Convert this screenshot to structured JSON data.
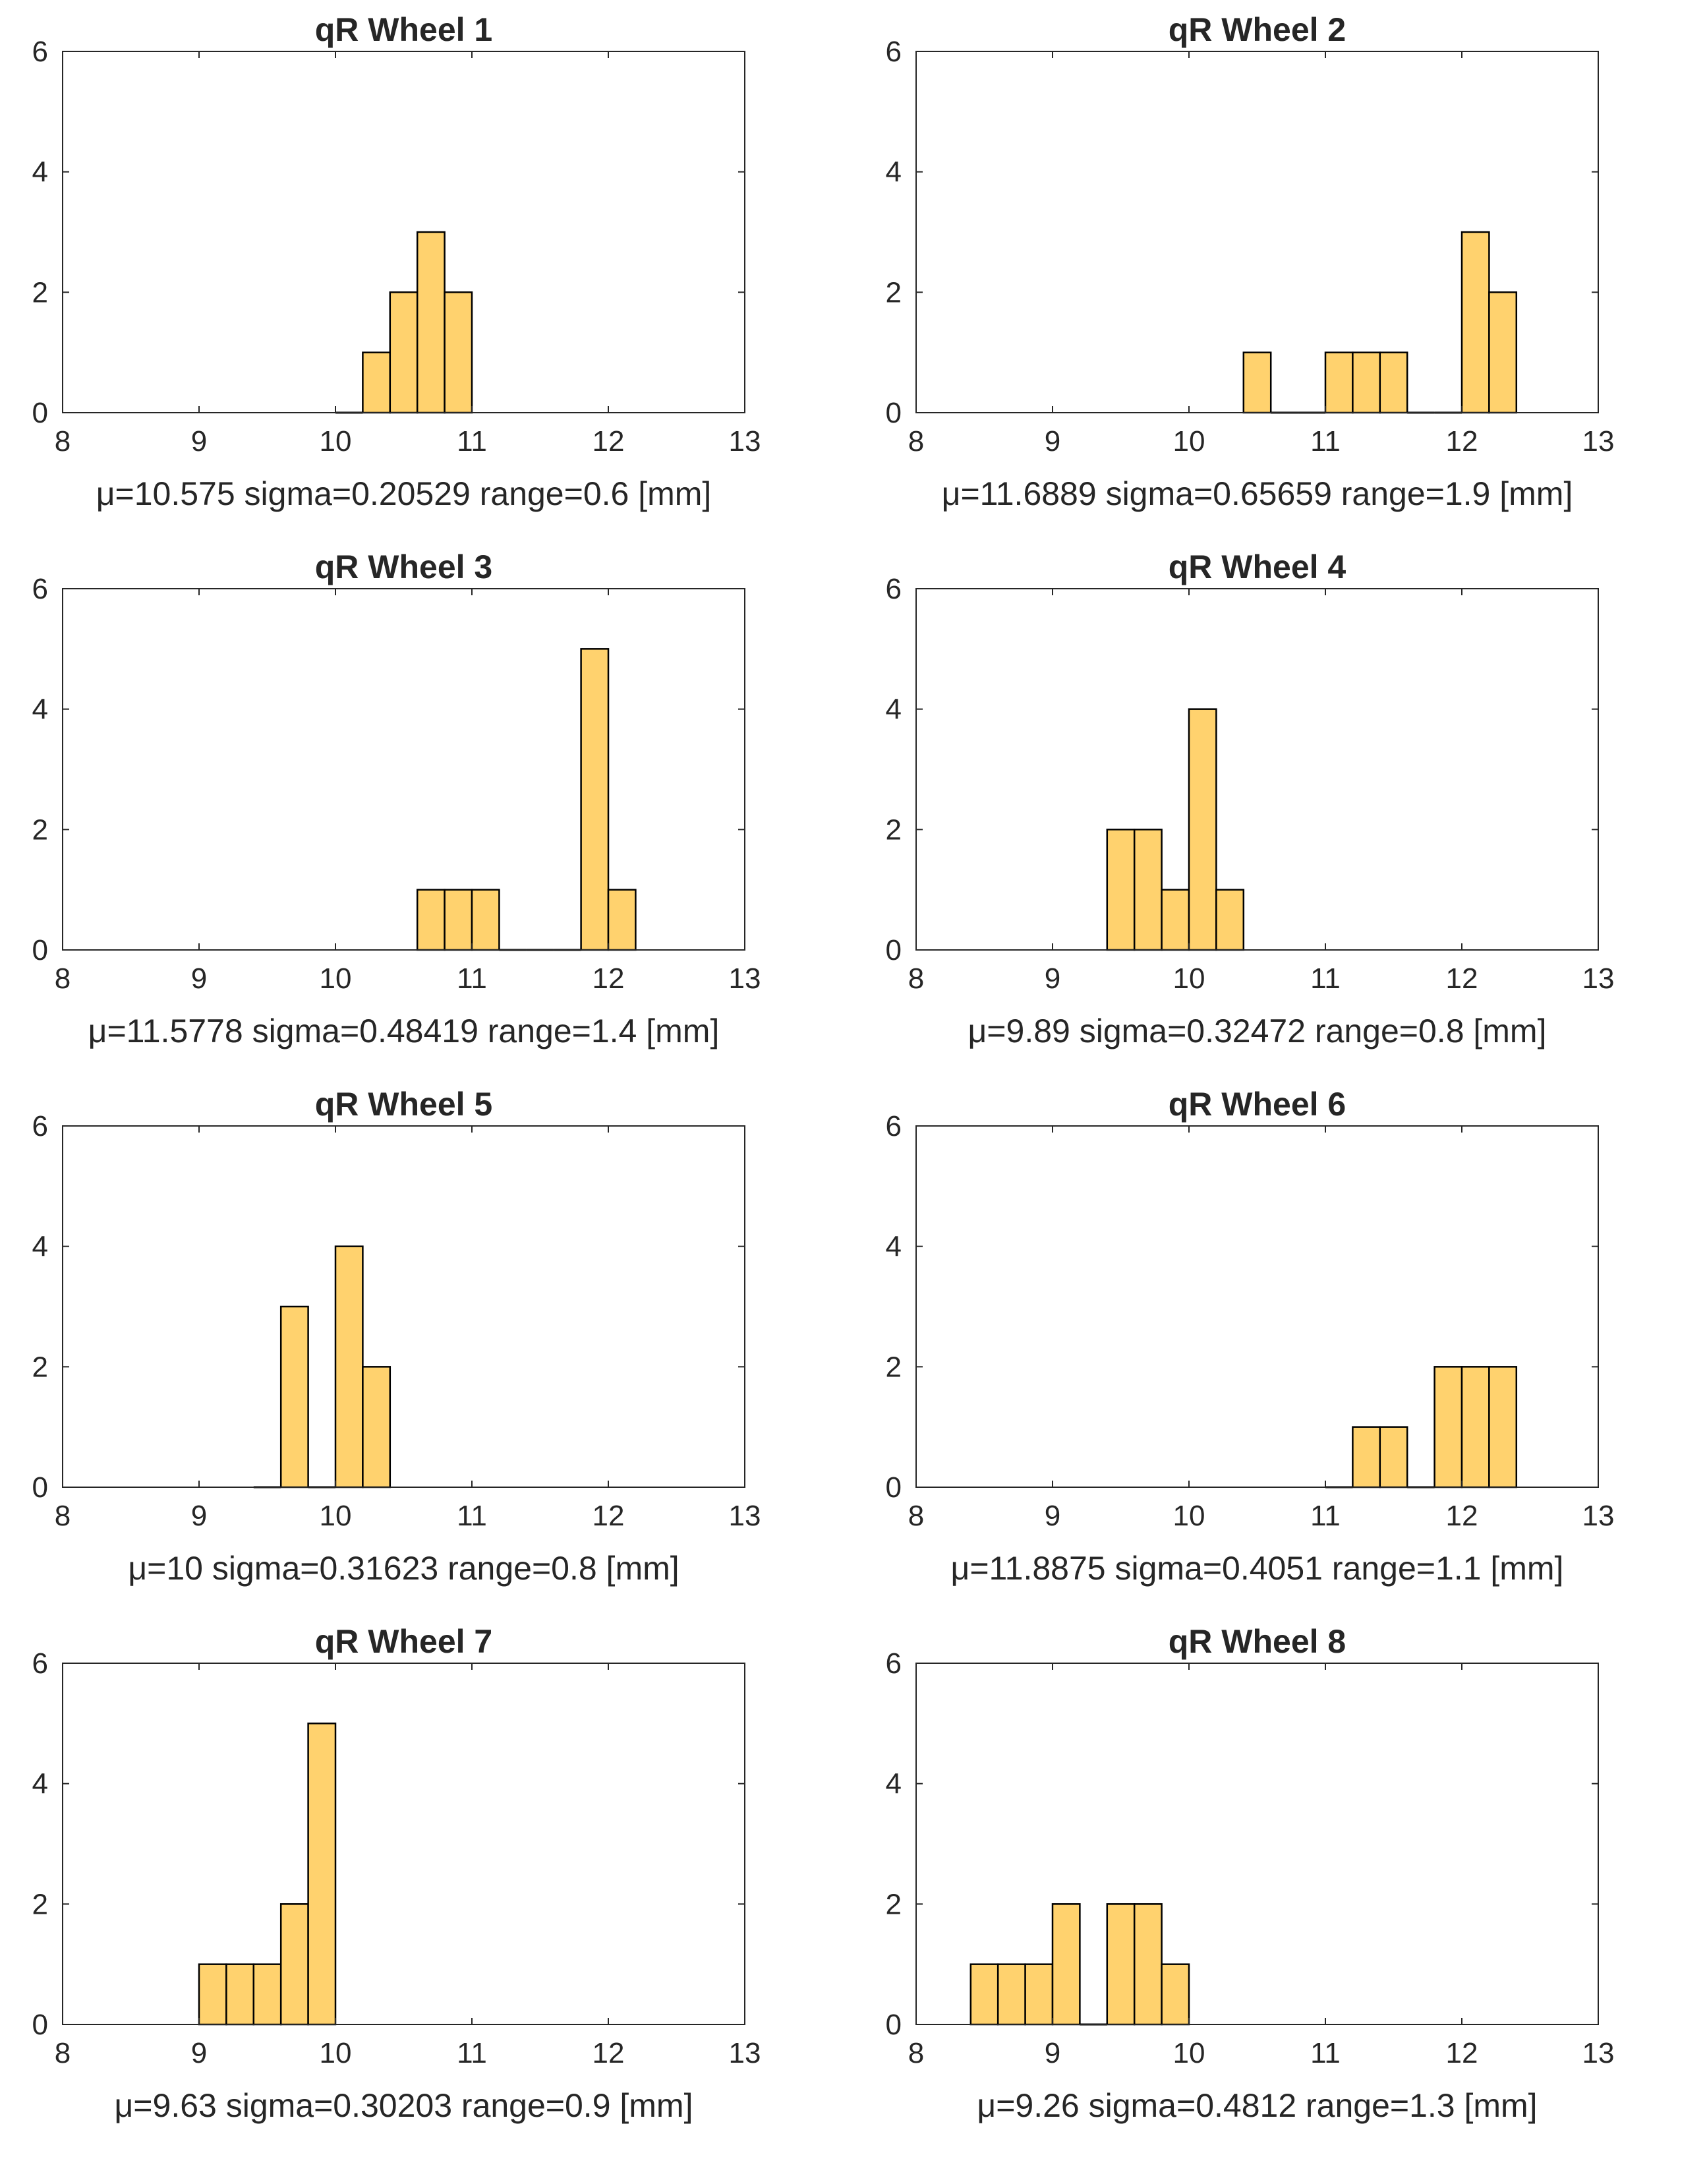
{
  "style": {
    "bar_fill": "#FFD26E",
    "bar_edge": "#000000",
    "axis_color": "#262626",
    "background": "#ffffff"
  },
  "chart_data": [
    {
      "type": "bar",
      "title": "qR Wheel 1",
      "xlim": [
        8,
        13
      ],
      "ylim": [
        0,
        6
      ],
      "xticks": [
        "8",
        "9",
        "10",
        "11",
        "12",
        "13"
      ],
      "yticks": [
        "0",
        "2",
        "4",
        "6"
      ],
      "bin_width": 0.2,
      "bin_edges": [
        10.0,
        10.2,
        10.4,
        10.6,
        10.8,
        11.0
      ],
      "counts": [
        0,
        1,
        2,
        3,
        2
      ],
      "stats": "μ=10.575  sigma=0.20529  range=0.6 [mm]"
    },
    {
      "type": "bar",
      "title": "qR Wheel 2",
      "xlim": [
        8,
        13
      ],
      "ylim": [
        0,
        6
      ],
      "xticks": [
        "8",
        "9",
        "10",
        "11",
        "12",
        "13"
      ],
      "yticks": [
        "0",
        "2",
        "4",
        "6"
      ],
      "bin_width": 0.2,
      "bin_edges": [
        10.4,
        10.6,
        10.8,
        11.0,
        11.2,
        11.4,
        11.6,
        11.8,
        12.0,
        12.2,
        12.4
      ],
      "counts": [
        1,
        0,
        0,
        1,
        1,
        1,
        0,
        0,
        3,
        2
      ],
      "stats": "μ=11.6889  sigma=0.65659  range=1.9 [mm]"
    },
    {
      "type": "bar",
      "title": "qR Wheel 3",
      "xlim": [
        8,
        13
      ],
      "ylim": [
        0,
        6
      ],
      "xticks": [
        "8",
        "9",
        "10",
        "11",
        "12",
        "13"
      ],
      "yticks": [
        "0",
        "2",
        "4",
        "6"
      ],
      "bin_width": 0.2,
      "bin_edges": [
        10.6,
        10.8,
        11.0,
        11.2,
        11.4,
        11.6,
        11.8,
        12.0,
        12.2
      ],
      "counts": [
        1,
        1,
        1,
        0,
        0,
        0,
        5,
        1
      ],
      "stats": "μ=11.5778  sigma=0.48419  range=1.4 [mm]"
    },
    {
      "type": "bar",
      "title": "qR Wheel 4",
      "xlim": [
        8,
        13
      ],
      "ylim": [
        0,
        6
      ],
      "xticks": [
        "8",
        "9",
        "10",
        "11",
        "12",
        "13"
      ],
      "yticks": [
        "0",
        "2",
        "4",
        "6"
      ],
      "bin_width": 0.2,
      "bin_edges": [
        9.4,
        9.6,
        9.8,
        10.0,
        10.2,
        10.4
      ],
      "counts": [
        2,
        2,
        1,
        4,
        1
      ],
      "stats": "μ=9.89  sigma=0.32472  range=0.8 [mm]"
    },
    {
      "type": "bar",
      "title": "qR Wheel 5",
      "xlim": [
        8,
        13
      ],
      "ylim": [
        0,
        6
      ],
      "xticks": [
        "8",
        "9",
        "10",
        "11",
        "12",
        "13"
      ],
      "yticks": [
        "0",
        "2",
        "4",
        "6"
      ],
      "bin_width": 0.2,
      "bin_edges": [
        9.4,
        9.6,
        9.8,
        10.0,
        10.2,
        10.4
      ],
      "counts": [
        0,
        3,
        0,
        4,
        2
      ],
      "stats": "μ=10  sigma=0.31623  range=0.8 [mm]"
    },
    {
      "type": "bar",
      "title": "qR Wheel 6",
      "xlim": [
        8,
        13
      ],
      "ylim": [
        0,
        6
      ],
      "xticks": [
        "8",
        "9",
        "10",
        "11",
        "12",
        "13"
      ],
      "yticks": [
        "0",
        "2",
        "4",
        "6"
      ],
      "bin_width": 0.2,
      "bin_edges": [
        11.0,
        11.2,
        11.4,
        11.6,
        11.8,
        12.0,
        12.2,
        12.4
      ],
      "counts": [
        0,
        1,
        1,
        0,
        2,
        2,
        2
      ],
      "stats": "μ=11.8875  sigma=0.4051  range=1.1 [mm]"
    },
    {
      "type": "bar",
      "title": "qR Wheel 7",
      "xlim": [
        8,
        13
      ],
      "ylim": [
        0,
        6
      ],
      "xticks": [
        "8",
        "9",
        "10",
        "11",
        "12",
        "13"
      ],
      "yticks": [
        "0",
        "2",
        "4",
        "6"
      ],
      "bin_width": 0.2,
      "bin_edges": [
        9.0,
        9.2,
        9.4,
        9.6,
        9.8,
        10.0
      ],
      "counts": [
        1,
        1,
        1,
        2,
        5
      ],
      "stats": "μ=9.63  sigma=0.30203  range=0.9 [mm]"
    },
    {
      "type": "bar",
      "title": "qR Wheel 8",
      "xlim": [
        8,
        13
      ],
      "ylim": [
        0,
        6
      ],
      "xticks": [
        "8",
        "9",
        "10",
        "11",
        "12",
        "13"
      ],
      "yticks": [
        "0",
        "2",
        "4",
        "6"
      ],
      "bin_width": 0.2,
      "bin_edges": [
        8.4,
        8.6,
        8.8,
        9.0,
        9.2,
        9.4,
        9.6,
        9.8,
        10.0
      ],
      "counts": [
        1,
        1,
        1,
        2,
        0,
        2,
        2,
        1
      ],
      "stats": "μ=9.26  sigma=0.4812  range=1.3 [mm]"
    }
  ]
}
